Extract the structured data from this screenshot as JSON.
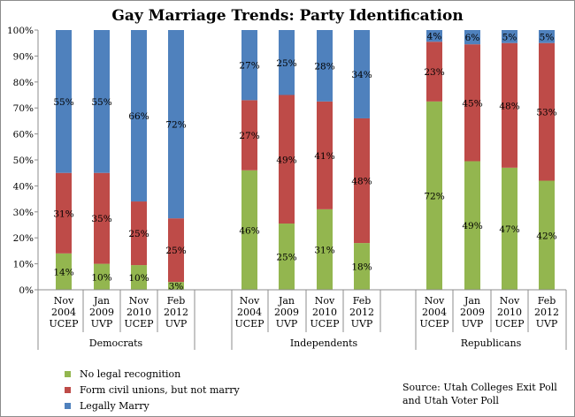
{
  "chart_data": {
    "type": "bar",
    "stacked": true,
    "percent_stacked": true,
    "title": "Gay Marriage Trends: Party Identification",
    "y_ticks": [
      "0%",
      "10%",
      "20%",
      "30%",
      "40%",
      "50%",
      "60%",
      "70%",
      "80%",
      "90%",
      "100%"
    ],
    "ylim": [
      0,
      100
    ],
    "grid": false,
    "legend_position": "bottom-left",
    "colors": {
      "no_legal": "#93b64f",
      "civil_unions": "#be4b48",
      "legally_marry": "#4f81bd"
    },
    "series": [
      {
        "name": "No legal recognition",
        "key": "no_legal"
      },
      {
        "name": "Form civil unions, but not marry",
        "key": "civil_unions"
      },
      {
        "name": "Legally Marry",
        "key": "legally_marry"
      }
    ],
    "groups": [
      {
        "name": "Democrats",
        "bars": [
          {
            "label": [
              "Nov",
              "2004",
              "UCEP"
            ],
            "values": [
              14,
              31,
              55
            ],
            "labels": [
              "14%",
              "31%",
              "55%"
            ]
          },
          {
            "label": [
              "Jan",
              "2009",
              "UVP"
            ],
            "values": [
              10,
              35,
              55
            ],
            "labels": [
              "10%",
              "35%",
              "55%"
            ]
          },
          {
            "label": [
              "Nov",
              "2010",
              "UCEP"
            ],
            "values": [
              9.5,
              24.5,
              66
            ],
            "labels": [
              "10%",
              "25%",
              "66%"
            ]
          },
          {
            "label": [
              "Feb",
              "2012",
              "UVP"
            ],
            "values": [
              3,
              24.5,
              72.5
            ],
            "labels": [
              "3%",
              "25%",
              "72%"
            ]
          }
        ]
      },
      {
        "name": "Independents",
        "bars": [
          {
            "label": [
              "Nov",
              "2004",
              "UCEP"
            ],
            "values": [
              46,
              27,
              27
            ],
            "labels": [
              "46%",
              "27%",
              "27%"
            ]
          },
          {
            "label": [
              "Jan",
              "2009",
              "UVP"
            ],
            "values": [
              25.5,
              49.5,
              25
            ],
            "labels": [
              "25%",
              "49%",
              "25%"
            ]
          },
          {
            "label": [
              "Nov",
              "2010",
              "UCEP"
            ],
            "values": [
              31,
              41.5,
              27.5
            ],
            "labels": [
              "31%",
              "41%",
              "28%"
            ]
          },
          {
            "label": [
              "Feb",
              "2012",
              "UVP"
            ],
            "values": [
              18,
              48,
              34
            ],
            "labels": [
              "18%",
              "48%",
              "34%"
            ]
          }
        ]
      },
      {
        "name": "Republicans",
        "bars": [
          {
            "label": [
              "Nov",
              "2004",
              "UCEP"
            ],
            "values": [
              72.5,
              23,
              4.5
            ],
            "labels": [
              "72%",
              "23%",
              "4%"
            ]
          },
          {
            "label": [
              "Jan",
              "2009",
              "UVP"
            ],
            "values": [
              49.5,
              45,
              5.5
            ],
            "labels": [
              "49%",
              "45%",
              "6%"
            ]
          },
          {
            "label": [
              "Nov",
              "2010",
              "UCEP"
            ],
            "values": [
              47,
              48,
              5
            ],
            "labels": [
              "47%",
              "48%",
              "5%"
            ]
          },
          {
            "label": [
              "Feb",
              "2012",
              "UVP"
            ],
            "values": [
              42,
              53,
              5
            ],
            "labels": [
              "42%",
              "53%",
              "5%"
            ]
          }
        ]
      }
    ],
    "source": [
      "Source: Utah Colleges  Exit Poll",
      "and Utah Voter Poll"
    ]
  }
}
